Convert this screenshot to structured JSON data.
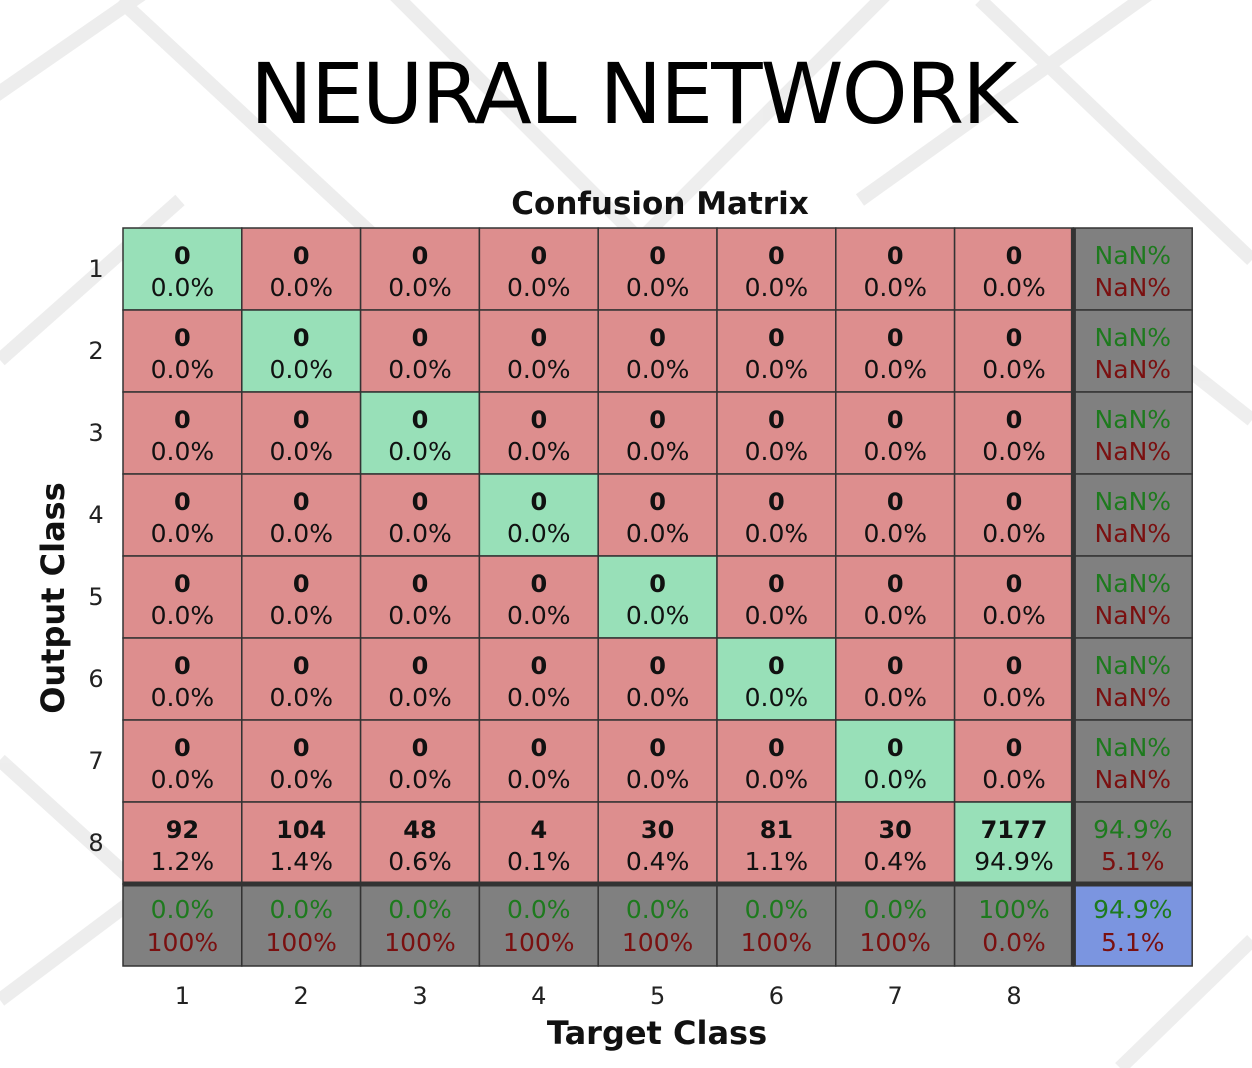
{
  "slide": {
    "title": "NEURAL NETWORK"
  },
  "colors": {
    "correct": "#98e0b8",
    "incorrect": "#dd8e8e",
    "summary": "#808080",
    "overall": "#7b95e0",
    "summary_good_text": "#1e7a1e",
    "summary_bad_text": "#7a1010"
  },
  "chart_data": {
    "type": "heatmap",
    "title": "Confusion Matrix",
    "xlabel": "Target Class",
    "ylabel": "Output Class",
    "x_ticks": [
      "1",
      "2",
      "3",
      "4",
      "5",
      "6",
      "7",
      "8"
    ],
    "y_ticks": [
      "1",
      "2",
      "3",
      "4",
      "5",
      "6",
      "7",
      "8"
    ],
    "counts": [
      [
        0,
        0,
        0,
        0,
        0,
        0,
        0,
        0
      ],
      [
        0,
        0,
        0,
        0,
        0,
        0,
        0,
        0
      ],
      [
        0,
        0,
        0,
        0,
        0,
        0,
        0,
        0
      ],
      [
        0,
        0,
        0,
        0,
        0,
        0,
        0,
        0
      ],
      [
        0,
        0,
        0,
        0,
        0,
        0,
        0,
        0
      ],
      [
        0,
        0,
        0,
        0,
        0,
        0,
        0,
        0
      ],
      [
        0,
        0,
        0,
        0,
        0,
        0,
        0,
        0
      ],
      [
        92,
        104,
        48,
        4,
        30,
        81,
        30,
        7177
      ]
    ],
    "percents": [
      [
        "0.0%",
        "0.0%",
        "0.0%",
        "0.0%",
        "0.0%",
        "0.0%",
        "0.0%",
        "0.0%"
      ],
      [
        "0.0%",
        "0.0%",
        "0.0%",
        "0.0%",
        "0.0%",
        "0.0%",
        "0.0%",
        "0.0%"
      ],
      [
        "0.0%",
        "0.0%",
        "0.0%",
        "0.0%",
        "0.0%",
        "0.0%",
        "0.0%",
        "0.0%"
      ],
      [
        "0.0%",
        "0.0%",
        "0.0%",
        "0.0%",
        "0.0%",
        "0.0%",
        "0.0%",
        "0.0%"
      ],
      [
        "0.0%",
        "0.0%",
        "0.0%",
        "0.0%",
        "0.0%",
        "0.0%",
        "0.0%",
        "0.0%"
      ],
      [
        "0.0%",
        "0.0%",
        "0.0%",
        "0.0%",
        "0.0%",
        "0.0%",
        "0.0%",
        "0.0%"
      ],
      [
        "0.0%",
        "0.0%",
        "0.0%",
        "0.0%",
        "0.0%",
        "0.0%",
        "0.0%",
        "0.0%"
      ],
      [
        "1.2%",
        "1.4%",
        "0.6%",
        "0.1%",
        "0.4%",
        "1.1%",
        "0.4%",
        "94.9%"
      ]
    ],
    "row_summary": [
      [
        "NaN%",
        "NaN%"
      ],
      [
        "NaN%",
        "NaN%"
      ],
      [
        "NaN%",
        "NaN%"
      ],
      [
        "NaN%",
        "NaN%"
      ],
      [
        "NaN%",
        "NaN%"
      ],
      [
        "NaN%",
        "NaN%"
      ],
      [
        "NaN%",
        "NaN%"
      ],
      [
        "94.9%",
        "5.1%"
      ]
    ],
    "col_summary": [
      [
        "0.0%",
        "100%"
      ],
      [
        "0.0%",
        "100%"
      ],
      [
        "0.0%",
        "100%"
      ],
      [
        "0.0%",
        "100%"
      ],
      [
        "0.0%",
        "100%"
      ],
      [
        "0.0%",
        "100%"
      ],
      [
        "0.0%",
        "100%"
      ],
      [
        "100%",
        "0.0%"
      ]
    ],
    "overall": [
      "94.9%",
      "5.1%"
    ]
  }
}
